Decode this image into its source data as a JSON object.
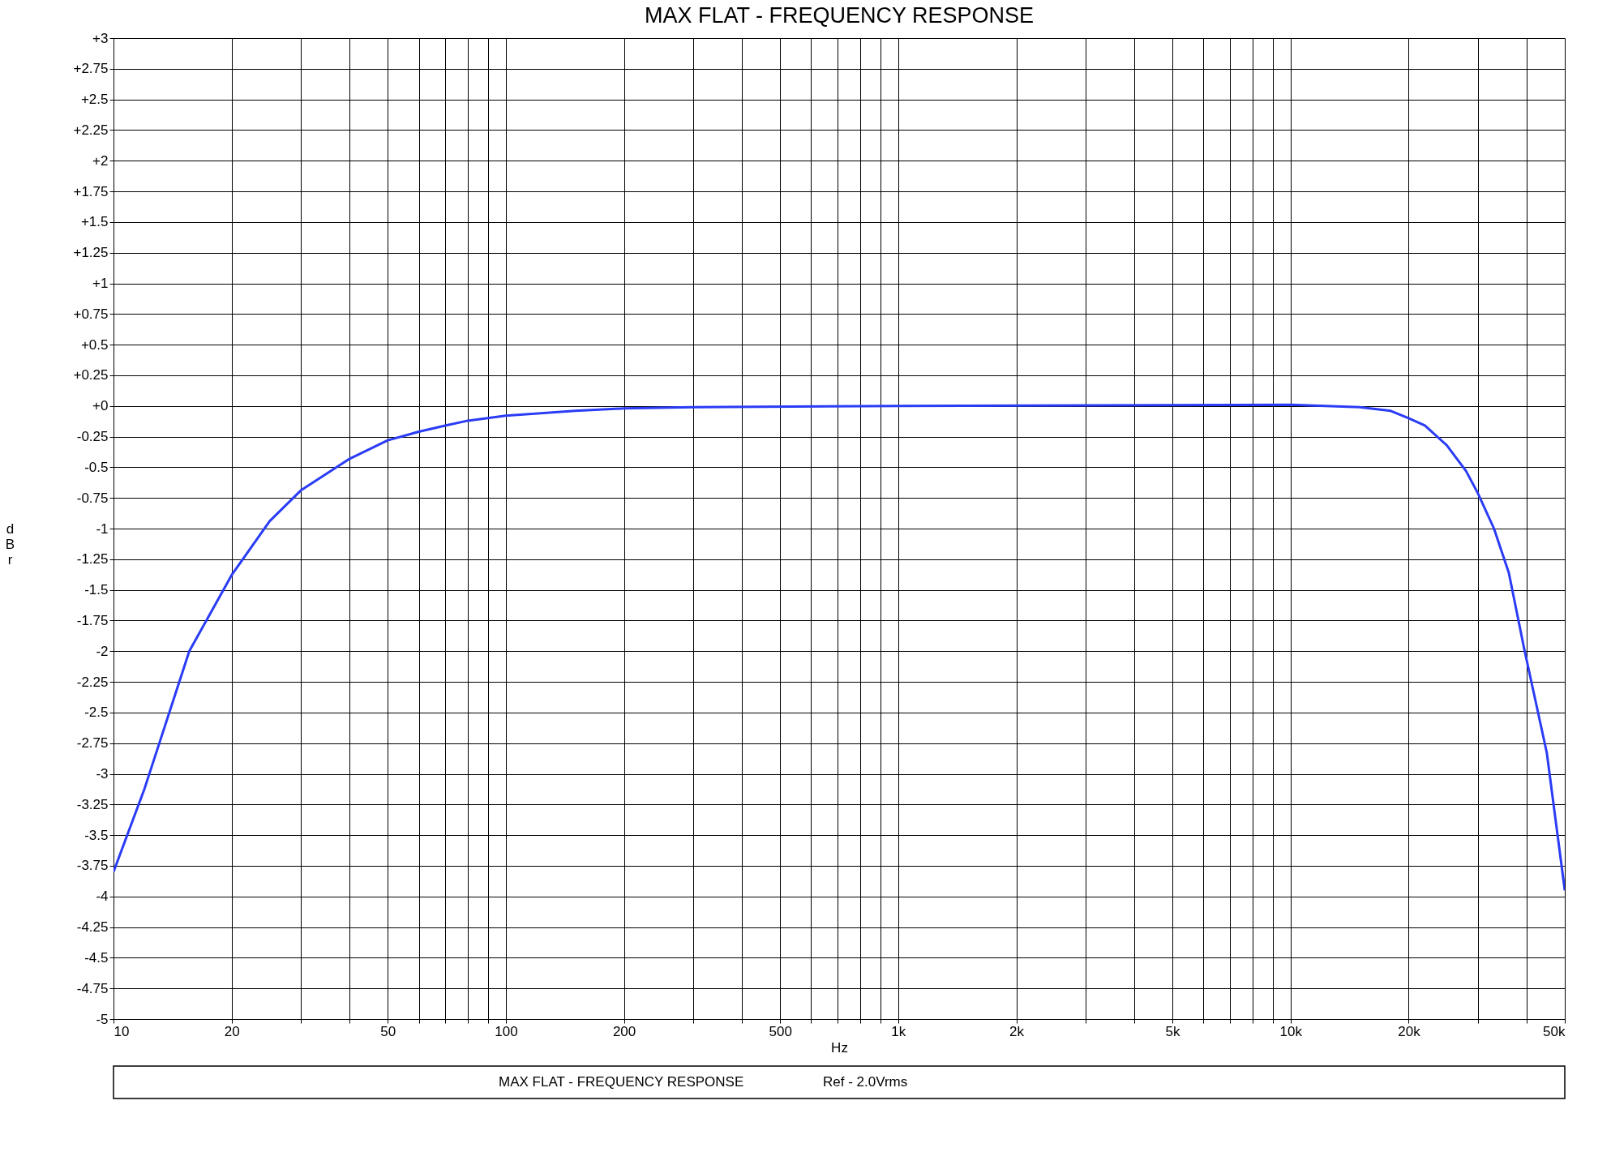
{
  "chart_data": {
    "type": "line",
    "title": "MAX FLAT  -  FREQUENCY RESPONSE",
    "xlabel": "Hz",
    "ylabel": "dBr",
    "log": "x",
    "grid": true,
    "line_style": "solid",
    "marker": "none",
    "xlim": [
      10,
      50000
    ],
    "ylim": [
      -5,
      3
    ],
    "xticks": [
      10,
      20,
      {
        "value": 30,
        "label": null
      },
      {
        "value": 40,
        "label": null
      },
      50,
      {
        "value": 60,
        "label": null
      },
      {
        "value": 70,
        "label": null
      },
      {
        "value": 80,
        "label": null
      },
      {
        "value": 90,
        "label": null
      },
      100,
      200,
      {
        "value": 300,
        "label": null
      },
      {
        "value": 400,
        "label": null
      },
      500,
      {
        "value": 600,
        "label": null
      },
      {
        "value": 700,
        "label": null
      },
      {
        "value": 800,
        "label": null
      },
      {
        "value": 900,
        "label": null
      },
      {
        "value": 1000,
        "label": "1k"
      },
      {
        "value": 2000,
        "label": "2k"
      },
      {
        "value": 3000,
        "label": null
      },
      {
        "value": 4000,
        "label": null
      },
      {
        "value": 5000,
        "label": "5k"
      },
      {
        "value": 6000,
        "label": null
      },
      {
        "value": 7000,
        "label": null
      },
      {
        "value": 8000,
        "label": null
      },
      {
        "value": 9000,
        "label": null
      },
      {
        "value": 10000,
        "label": "10k"
      },
      {
        "value": 20000,
        "label": "20k"
      },
      {
        "value": 30000,
        "label": null
      },
      {
        "value": 40000,
        "label": null
      },
      {
        "value": 50000,
        "label": "50k"
      }
    ],
    "yticks": [
      {
        "value": 3,
        "label": "+3"
      },
      {
        "value": 2.75,
        "label": "+2.75"
      },
      {
        "value": 2.5,
        "label": "+2.5"
      },
      {
        "value": 2.25,
        "label": "+2.25"
      },
      {
        "value": 2,
        "label": "+2"
      },
      {
        "value": 1.75,
        "label": "+1.75"
      },
      {
        "value": 1.5,
        "label": "+1.5"
      },
      {
        "value": 1.25,
        "label": "+1.25"
      },
      {
        "value": 1,
        "label": "+1"
      },
      {
        "value": 0.75,
        "label": "+0.75"
      },
      {
        "value": 0.5,
        "label": "+0.5"
      },
      {
        "value": 0.25,
        "label": "+0.25"
      },
      {
        "value": 0,
        "label": "+0"
      },
      -0.25,
      -0.5,
      -0.75,
      -1,
      -1.25,
      -1.5,
      -1.75,
      -2,
      -2.25,
      -2.5,
      -2.75,
      -3,
      -3.25,
      -3.5,
      -3.75,
      -4,
      -4.25,
      -4.5,
      -4.75,
      -5
    ],
    "x": [
      10,
      12,
      15.6,
      20,
      25,
      30,
      40,
      50,
      60,
      70,
      80,
      100,
      150,
      200,
      300,
      1000,
      10000,
      15000,
      18000,
      20000,
      22000,
      25000,
      28000,
      30000,
      33000,
      36000,
      39400,
      45000,
      50000
    ],
    "series": [
      {
        "color": "#2a3cf5",
        "values": [
          -3.8,
          -3.12,
          -2.0,
          -1.38,
          -0.94,
          -0.69,
          -0.43,
          -0.28,
          -0.21,
          -0.16,
          -0.12,
          -0.08,
          -0.04,
          -0.02,
          -0.01,
          0.0,
          0.01,
          -0.01,
          -0.04,
          -0.1,
          -0.16,
          -0.32,
          -0.53,
          -0.71,
          -1.0,
          -1.36,
          -1.98,
          -2.83,
          -3.95
        ]
      }
    ],
    "annotations": [
      "MAX FLAT - FREQUENCY RESPONSE",
      "Ref - 2.0Vrms"
    ]
  }
}
